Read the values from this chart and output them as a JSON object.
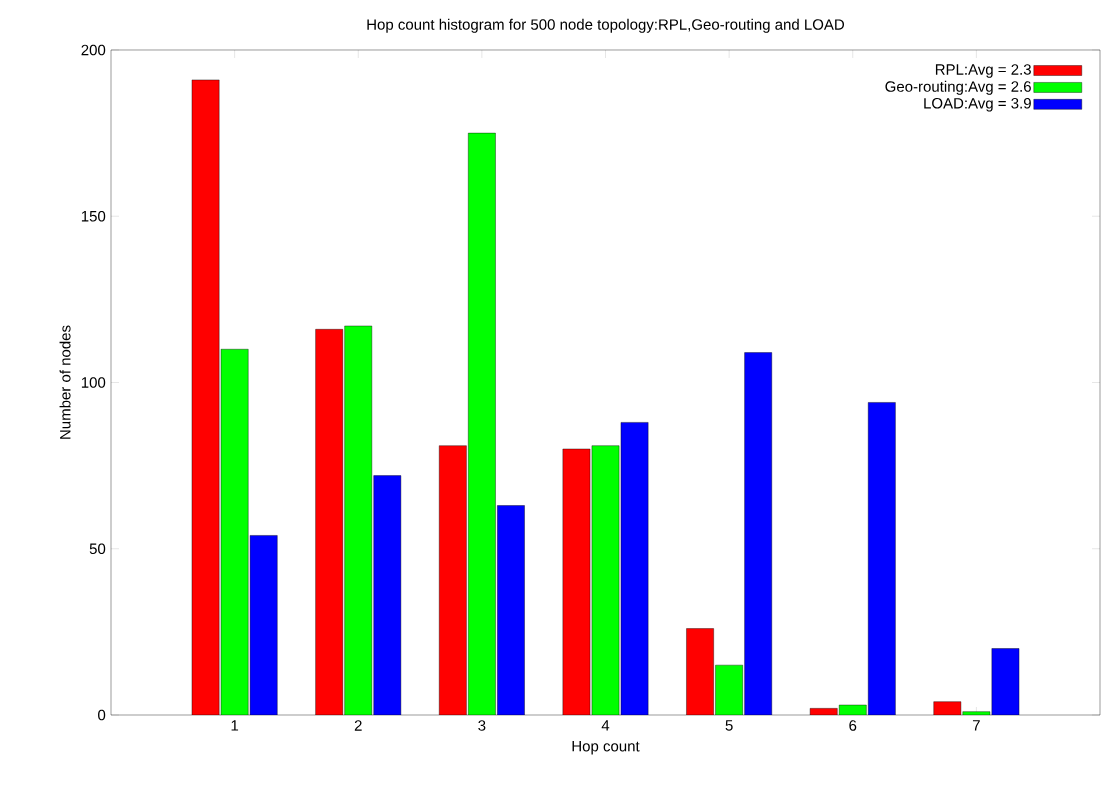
{
  "chart_data": {
    "type": "bar",
    "title": "Hop count histogram for 500 node topology:RPL,Geo-routing and LOAD",
    "xlabel": "Hop count",
    "ylabel": "Number of nodes",
    "categories": [
      "1",
      "2",
      "3",
      "4",
      "5",
      "6",
      "7"
    ],
    "series": [
      {
        "name": "RPL:Avg = 2.3",
        "color": "#ff0000",
        "values": [
          191,
          116,
          81,
          80,
          26,
          2,
          4
        ]
      },
      {
        "name": "Geo-routing:Avg = 2.6",
        "color": "#00ff00",
        "values": [
          110,
          117,
          175,
          81,
          15,
          3,
          1
        ]
      },
      {
        "name": "LOAD:Avg = 3.9",
        "color": "#0000ff",
        "values": [
          54,
          72,
          63,
          88,
          109,
          94,
          20
        ]
      }
    ],
    "ylim": [
      0,
      200
    ],
    "yticks": [
      0,
      50,
      100,
      150,
      200
    ],
    "legend": "top right"
  }
}
